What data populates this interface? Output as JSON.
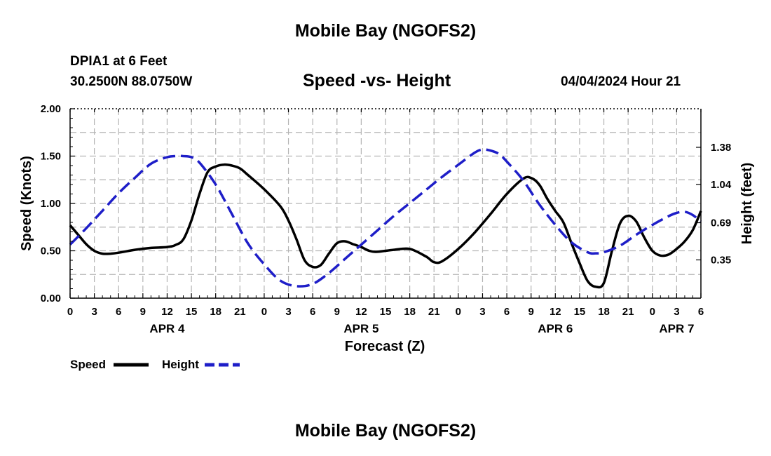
{
  "header": {
    "title": "Mobile Bay (NGOFS2)",
    "station": "DPIA1 at 6 Feet",
    "coordinates": "30.2500N  88.0750W",
    "subtitle": "Speed -vs- Height",
    "datetime": "04/04/2024 Hour 21",
    "footer_title": "Mobile Bay (NGOFS2)"
  },
  "chart_data": {
    "type": "line",
    "title": "Speed -vs- Height",
    "xlabel": "Forecast (Z)",
    "ylabel_left": "Speed (Knots)",
    "ylabel_right": "Height (feet)",
    "x_range_hours": [
      0,
      78
    ],
    "x_tick_step_hours": 3,
    "x_tick_labels": [
      "0",
      "3",
      "6",
      "9",
      "12",
      "15",
      "18",
      "21",
      "0",
      "3",
      "6",
      "9",
      "12",
      "15",
      "18",
      "21",
      "0",
      "3",
      "6",
      "9",
      "12",
      "15",
      "18",
      "21",
      "0",
      "3",
      "6"
    ],
    "day_labels": [
      {
        "label": "APR 4",
        "hour": 12
      },
      {
        "label": "APR 5",
        "hour": 36
      },
      {
        "label": "APR 6",
        "hour": 60
      },
      {
        "label": "APR 7",
        "hour": 75
      }
    ],
    "ylim_left": [
      0,
      2.0
    ],
    "y_ticks_left": [
      "0.00",
      "0.50",
      "1.00",
      "1.50",
      "2.00"
    ],
    "y_tick_values_left": [
      0,
      0.5,
      1.0,
      1.5,
      2.0
    ],
    "ylim_right": [
      0,
      1.733
    ],
    "y_ticks_right": [
      "0.35",
      "0.69",
      "1.04",
      "1.38"
    ],
    "y_tick_values_right": [
      0.35,
      0.69,
      1.04,
      1.38
    ],
    "grid": true,
    "series": [
      {
        "name": "Speed",
        "axis": "left",
        "color": "#000000",
        "style": "solid",
        "x": [
          0,
          1,
          2,
          3,
          4,
          5,
          6,
          8,
          10,
          12,
          13,
          14,
          15,
          16,
          17,
          18,
          19,
          20,
          21,
          22,
          24,
          26,
          27,
          28,
          29,
          30,
          31,
          32,
          33,
          34,
          35,
          36,
          37,
          38,
          40,
          42,
          44,
          45,
          46,
          48,
          50,
          52,
          54,
          56,
          57,
          58,
          59,
          60,
          61,
          62,
          63,
          64,
          65,
          66,
          67,
          68,
          69,
          70,
          71,
          72,
          73,
          74,
          75,
          76,
          77,
          78
        ],
        "values": [
          0.77,
          0.67,
          0.57,
          0.5,
          0.47,
          0.47,
          0.48,
          0.51,
          0.53,
          0.54,
          0.56,
          0.62,
          0.82,
          1.1,
          1.33,
          1.39,
          1.41,
          1.4,
          1.37,
          1.3,
          1.15,
          0.97,
          0.82,
          0.62,
          0.4,
          0.33,
          0.35,
          0.47,
          0.58,
          0.6,
          0.57,
          0.54,
          0.5,
          0.49,
          0.51,
          0.52,
          0.44,
          0.38,
          0.39,
          0.52,
          0.69,
          0.89,
          1.1,
          1.26,
          1.27,
          1.2,
          1.05,
          0.92,
          0.8,
          0.58,
          0.37,
          0.18,
          0.12,
          0.16,
          0.5,
          0.79,
          0.87,
          0.81,
          0.64,
          0.5,
          0.45,
          0.46,
          0.52,
          0.6,
          0.72,
          0.92
        ]
      },
      {
        "name": "Height",
        "axis": "right",
        "color": "#1e1ec8",
        "style": "dashed",
        "x": [
          0,
          2,
          4,
          6,
          8,
          10,
          12,
          13,
          14,
          15,
          16,
          18,
          20,
          22,
          24,
          26,
          28,
          30,
          32,
          34,
          36,
          38,
          40,
          42,
          44,
          46,
          48,
          50,
          51,
          52,
          53,
          54,
          56,
          58,
          60,
          62,
          64,
          65,
          66,
          68,
          70,
          72,
          74,
          75,
          76,
          77,
          78
        ],
        "values": [
          0.49,
          0.64,
          0.8,
          0.96,
          1.1,
          1.23,
          1.29,
          1.3,
          1.3,
          1.29,
          1.24,
          1.04,
          0.77,
          0.5,
          0.31,
          0.16,
          0.11,
          0.13,
          0.23,
          0.36,
          0.49,
          0.62,
          0.75,
          0.87,
          0.99,
          1.11,
          1.22,
          1.33,
          1.36,
          1.35,
          1.32,
          1.25,
          1.08,
          0.86,
          0.67,
          0.51,
          0.42,
          0.41,
          0.42,
          0.48,
          0.58,
          0.67,
          0.75,
          0.78,
          0.79,
          0.76,
          0.7
        ]
      }
    ],
    "legend": [
      {
        "name": "Speed",
        "color": "#000000",
        "style": "solid"
      },
      {
        "name": "Height",
        "color": "#1e1ec8",
        "style": "dashed"
      }
    ],
    "legend_position": "bottom-left"
  }
}
